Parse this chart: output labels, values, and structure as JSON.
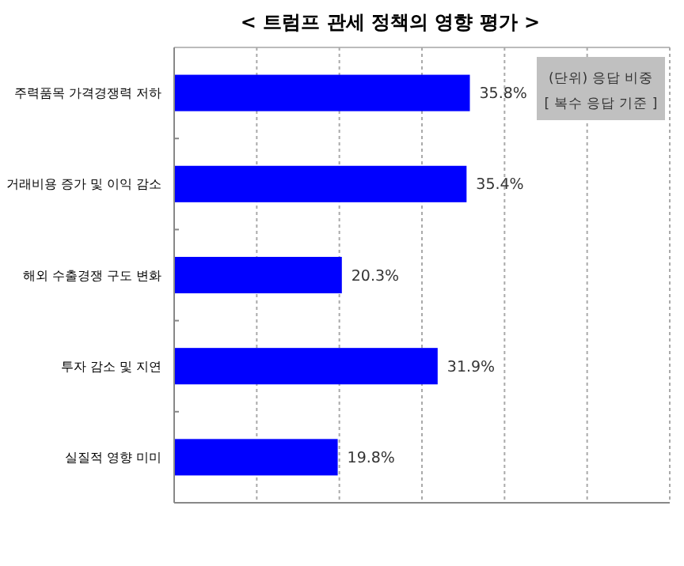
{
  "chart_data": {
    "type": "bar",
    "orientation": "horizontal",
    "title": "< 트럼프 관세 정책의 영향 평가 >",
    "categories": [
      "주력품목 가격경쟁력 저하",
      "거래비용 증가 및 이익 감소",
      "해외 수출경쟁 구도 변화",
      "투자 감소 및 지연",
      "실질적 영향 미미"
    ],
    "values": [
      35.8,
      35.4,
      20.3,
      31.9,
      19.8
    ],
    "color": "#0000ff",
    "xlim": [
      0,
      60
    ],
    "xticks": [
      {
        "value": 0,
        "label": null
      },
      {
        "value": 10,
        "label": null
      },
      {
        "value": 20,
        "label": null
      },
      {
        "value": 30,
        "label": null
      },
      {
        "value": 40,
        "label": null
      },
      {
        "value": 50,
        "label": null
      },
      {
        "value": 60,
        "label": null
      }
    ],
    "value_labels": [
      "35.8%",
      "35.4%",
      "20.3%",
      "31.9%",
      "19.8%"
    ],
    "tick_labels": "y",
    "grid": "x",
    "annotations": [
      "(단위) 응답 비중",
      "[ 복수 응답 기준 ]"
    ]
  }
}
